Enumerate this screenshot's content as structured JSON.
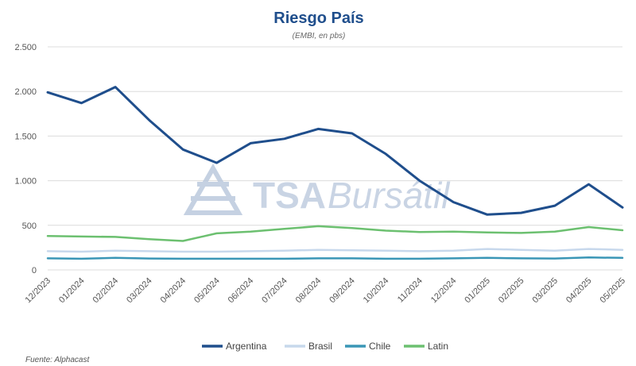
{
  "chart_data": {
    "type": "line",
    "title": "Riesgo País",
    "subtitle": "(EMBI, en pbs)",
    "source": "Fuente: Alphacast",
    "watermark": {
      "text1": "TSA",
      "text2": "Bursátil"
    },
    "ylim": [
      0,
      2500
    ],
    "yticks": [
      {
        "value": 0,
        "label": "0"
      },
      {
        "value": 500,
        "label": "500"
      },
      {
        "value": 1000,
        "label": "1.000"
      },
      {
        "value": 1500,
        "label": "1.500"
      },
      {
        "value": 2000,
        "label": "2.000"
      },
      {
        "value": 2500,
        "label": "2.500"
      }
    ],
    "xticks": [
      "12/2023",
      "01/2024",
      "02/2024",
      "03/2024",
      "04/2024",
      "05/2024",
      "06/2024",
      "07/2024",
      "08/2024",
      "09/2024",
      "10/2024",
      "11/2024",
      "12/2024",
      "01/2025",
      "02/2025",
      "03/2025",
      "04/2025",
      "05/2025"
    ],
    "x": [
      "12/2023",
      "01/2024",
      "02/2024",
      "03/2024",
      "04/2024",
      "05/2024",
      "06/2024",
      "07/2024",
      "08/2024",
      "09/2024",
      "10/2024",
      "11/2024",
      "12/2024",
      "01/2025",
      "02/2025",
      "03/2025",
      "04/2025",
      "05/2025"
    ],
    "grid": true,
    "legend_position": "bottom",
    "series": [
      {
        "name": "Argentina",
        "color": "#1f4e8c",
        "width": 3,
        "values": [
          1990,
          1870,
          2050,
          1680,
          1350,
          1200,
          1420,
          1470,
          1580,
          1530,
          1300,
          1000,
          760,
          620,
          640,
          720,
          960,
          700
        ]
      },
      {
        "name": "Brasil",
        "color": "#c7d8ec",
        "width": 2.5,
        "values": [
          210,
          205,
          215,
          210,
          205,
          205,
          210,
          215,
          225,
          220,
          215,
          210,
          215,
          235,
          225,
          215,
          235,
          225
        ]
      },
      {
        "name": "Chile",
        "color": "#3a96b6",
        "width": 2.5,
        "values": [
          130,
          125,
          135,
          128,
          125,
          125,
          125,
          125,
          130,
          130,
          125,
          125,
          130,
          135,
          130,
          128,
          140,
          135
        ]
      },
      {
        "name": "Latin",
        "color": "#6cc070",
        "width": 2.5,
        "values": [
          380,
          375,
          370,
          345,
          325,
          410,
          430,
          460,
          490,
          470,
          440,
          425,
          430,
          420,
          415,
          430,
          480,
          445
        ]
      }
    ]
  }
}
